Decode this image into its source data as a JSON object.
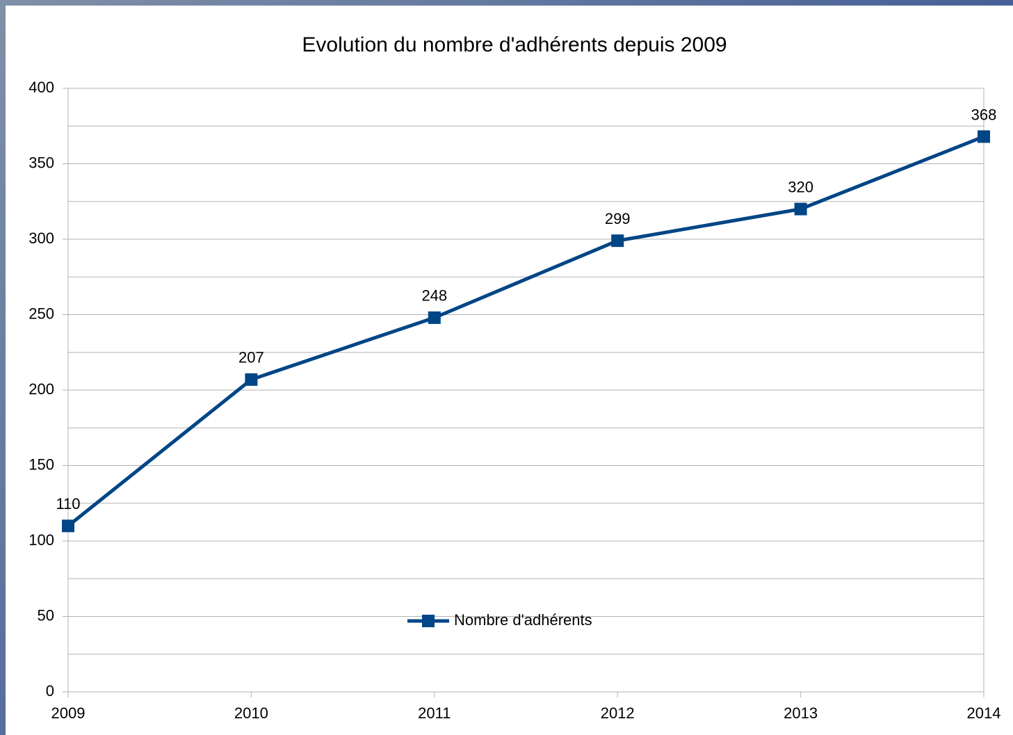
{
  "chart_data": {
    "type": "line",
    "title": "Evolution du nombre d'adhérents depuis 2009",
    "categories": [
      "2009",
      "2010",
      "2011",
      "2012",
      "2013",
      "2014"
    ],
    "series": [
      {
        "name": "Nombre d'adhérents",
        "color": "#004586",
        "values": [
          110,
          207,
          248,
          299,
          320,
          368
        ]
      }
    ],
    "ylim": [
      0,
      400
    ],
    "yticks": [
      0,
      50,
      100,
      150,
      200,
      250,
      300,
      350,
      400
    ],
    "grid": true,
    "legend": "bottom",
    "data_labels": true
  }
}
